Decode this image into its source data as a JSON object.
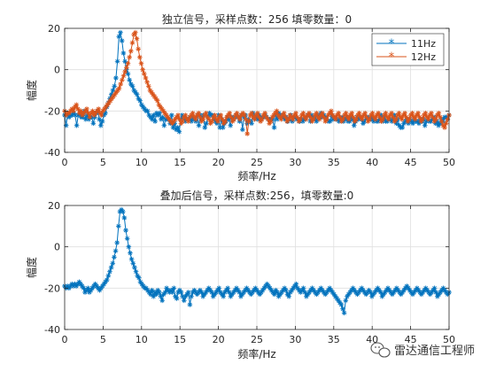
{
  "colors": {
    "series1": "#0072BD",
    "series2": "#D95319",
    "grid": "#DFDFDF",
    "axis": "#262626"
  },
  "watermark": {
    "text": "雷达通信工程师",
    "icon": "wechat-icon"
  },
  "chart_data": [
    {
      "type": "line",
      "title": "独立信号，采样点数：256 填零数量：0",
      "xlabel": "频率/Hz",
      "ylabel": "幅度",
      "xlim": [
        0,
        50
      ],
      "ylim": [
        -40,
        20
      ],
      "xticks": [
        0,
        5,
        10,
        15,
        20,
        25,
        30,
        35,
        40,
        45,
        50
      ],
      "yticks": [
        -40,
        -20,
        0,
        20
      ],
      "grid": true,
      "marker": "asterisk",
      "legend": "top-right",
      "series": [
        {
          "name": "11Hz",
          "color": "#0072BD",
          "values": [
            -22,
            -27,
            -21,
            -23,
            -22,
            -22,
            -21,
            -22,
            -27,
            -22,
            -21,
            -23,
            -23,
            -20,
            -24,
            -22,
            -24,
            -22,
            -23,
            -26,
            -23,
            -21,
            -20,
            -24,
            -27,
            -25,
            -22,
            -21,
            -18,
            -16,
            -14,
            -12,
            -10,
            -8,
            -4,
            4,
            16,
            18,
            14,
            8,
            4,
            0,
            -2,
            -5,
            -7,
            -8,
            -10,
            -11,
            -12,
            -14,
            -15,
            -17,
            -18,
            -19,
            -20,
            -20,
            -22,
            -23,
            -24,
            -22,
            -25,
            -21,
            -22,
            -21,
            -24,
            -23,
            -27,
            -24,
            -24,
            -24,
            -26,
            -22,
            -28,
            -26,
            -29,
            -28,
            -30,
            -24,
            -22,
            -23,
            -25,
            -24,
            -24,
            -23,
            -25,
            -23,
            -24,
            -25,
            -22,
            -27,
            -22,
            -24,
            -22,
            -28,
            -26,
            -23,
            -21,
            -22,
            -22,
            -24,
            -25,
            -26,
            -22,
            -28,
            -24,
            -28,
            -26,
            -25,
            -23,
            -24,
            -27,
            -23,
            -24,
            -23,
            -22,
            -23,
            -25,
            -22,
            -29,
            -23,
            -22,
            -26,
            -24,
            -25,
            -26,
            -21,
            -24,
            -23,
            -24,
            -22,
            -24,
            -23,
            -23,
            -22,
            -23,
            -24,
            -24,
            -24,
            -24,
            -28,
            -22,
            -24,
            -21,
            -22,
            -23,
            -22,
            -24,
            -23,
            -25,
            -24,
            -22,
            -25,
            -23,
            -23,
            -24,
            -24,
            -25,
            -24,
            -25,
            -24,
            -23,
            -22,
            -22,
            -25,
            -22,
            -24,
            -23,
            -25,
            -22,
            -23,
            -21,
            -23,
            -22,
            -23,
            -24,
            -25,
            -25,
            -22,
            -24,
            -23,
            -24,
            -24,
            -25,
            -24,
            -23,
            -25,
            -24,
            -23,
            -25,
            -25,
            -23,
            -24,
            -27,
            -25,
            -23,
            -24,
            -23,
            -24,
            -26,
            -25,
            -23,
            -23,
            -24,
            -24,
            -23,
            -25,
            -24,
            -25,
            -25,
            -24,
            -22,
            -25,
            -23,
            -25,
            -25,
            -24,
            -24,
            -25,
            -24,
            -22,
            -26,
            -24,
            -27,
            -28,
            -28,
            -26,
            -25,
            -24,
            -26,
            -24,
            -25,
            -26,
            -24,
            -25,
            -25,
            -26,
            -24,
            -25,
            -24,
            -27,
            -25,
            -24,
            -25,
            -25,
            -24,
            -23,
            -26,
            -25,
            -27,
            -26,
            -24,
            -25,
            -23,
            -23,
            -24,
            -22
          ]
        },
        {
          "name": "12Hz",
          "color": "#D95319",
          "values": [
            -20,
            -22,
            -21,
            -21,
            -20,
            -19,
            -20,
            -18,
            -17,
            -19,
            -21,
            -20,
            -22,
            -21,
            -20,
            -19,
            -21,
            -23,
            -21,
            -20,
            -22,
            -21,
            -20,
            -19,
            -21,
            -22,
            -20,
            -19,
            -18,
            -17,
            -16,
            -15,
            -14,
            -13,
            -12,
            -11,
            -10,
            -9,
            -7,
            -5,
            -3,
            -1,
            1,
            3,
            6,
            9,
            13,
            17,
            18,
            15,
            10,
            6,
            3,
            0,
            -2,
            -4,
            -6,
            -8,
            -10,
            -11,
            -12,
            -13,
            -14,
            -15,
            -17,
            -18,
            -19,
            -20,
            -21,
            -22,
            -23,
            -24,
            -25,
            -26,
            -25,
            -24,
            -23,
            -22,
            -24,
            -26,
            -25,
            -23,
            -22,
            -24,
            -25,
            -23,
            -22,
            -21,
            -23,
            -24,
            -22,
            -21,
            -23,
            -25,
            -24,
            -22,
            -21,
            -23,
            -24,
            -26,
            -25,
            -23,
            -22,
            -24,
            -25,
            -23,
            -22,
            -24,
            -26,
            -25,
            -23,
            -22,
            -21,
            -23,
            -25,
            -24,
            -22,
            -21,
            -23,
            -24,
            -22,
            -21,
            -22,
            -24,
            -31,
            -25,
            -22,
            -21,
            -23,
            -24,
            -22,
            -21,
            -23,
            -25,
            -24,
            -22,
            -21,
            -23,
            -24,
            -26,
            -25,
            -23,
            -22,
            -21,
            -20,
            -22,
            -23,
            -24,
            -22,
            -21,
            -23,
            -25,
            -24,
            -22,
            -23,
            -24,
            -22,
            -21,
            -23,
            -25,
            -24,
            -22,
            -21,
            -23,
            -24,
            -22,
            -21,
            -23,
            -25,
            -24,
            -22,
            -21,
            -23,
            -24,
            -22,
            -21,
            -23,
            -25,
            -24,
            -22,
            -21,
            -20,
            -22,
            -23,
            -24,
            -22,
            -21,
            -23,
            -25,
            -24,
            -22,
            -21,
            -23,
            -24,
            -22,
            -21,
            -23,
            -25,
            -24,
            -22,
            -21,
            -23,
            -24,
            -22,
            -21,
            -23,
            -25,
            -24,
            -22,
            -21,
            -23,
            -24,
            -22,
            -21,
            -23,
            -25,
            -24,
            -22,
            -21,
            -23,
            -24,
            -22,
            -21,
            -23,
            -25,
            -24,
            -22,
            -21,
            -23,
            -24,
            -22,
            -21,
            -23,
            -25,
            -24,
            -22,
            -21,
            -23,
            -24,
            -22,
            -21,
            -23,
            -25,
            -24,
            -22,
            -21,
            -23,
            -24,
            -22,
            -21,
            -23,
            -25,
            -24,
            -22,
            -21,
            -23,
            -25,
            -27,
            -28,
            -26,
            -24,
            -22
          ]
        }
      ]
    },
    {
      "type": "line",
      "title": "叠加后信号，采样点数:256，填零数量:0",
      "xlabel": "频率/Hz",
      "ylabel": "幅度",
      "xlim": [
        0,
        50
      ],
      "ylim": [
        -40,
        20
      ],
      "xticks": [
        0,
        5,
        10,
        15,
        20,
        25,
        30,
        35,
        40,
        45,
        50
      ],
      "yticks": [
        -40,
        -20,
        0,
        20
      ],
      "grid": true,
      "marker": "asterisk",
      "series": [
        {
          "color": "#0072BD",
          "values": [
            -19,
            -20,
            -19,
            -20,
            -19,
            -18,
            -19,
            -18,
            -19,
            -18,
            -17,
            -18,
            -19,
            -20,
            -22,
            -21,
            -20,
            -22,
            -21,
            -20,
            -19,
            -18,
            -19,
            -20,
            -21,
            -20,
            -19,
            -18,
            -17,
            -16,
            -14,
            -12,
            -10,
            -8,
            -5,
            -2,
            2,
            10,
            17,
            18,
            17,
            14,
            8,
            4,
            0,
            -3,
            -6,
            -8,
            -10,
            -12,
            -14,
            -15,
            -17,
            -18,
            -19,
            -20,
            -20,
            -21,
            -22,
            -23,
            -21,
            -24,
            -22,
            -23,
            -21,
            -22,
            -24,
            -26,
            -23,
            -22,
            -20,
            -21,
            -22,
            -21,
            -22,
            -20,
            -24,
            -25,
            -22,
            -21,
            -22,
            -24,
            -26,
            -24,
            -23,
            -22,
            -28,
            -24,
            -22,
            -21,
            -22,
            -23,
            -22,
            -21,
            -22,
            -24,
            -23,
            -22,
            -21,
            -20,
            -21,
            -22,
            -24,
            -23,
            -22,
            -21,
            -20,
            -22,
            -23,
            -24,
            -22,
            -21,
            -20,
            -22,
            -24,
            -23,
            -22,
            -21,
            -20,
            -21,
            -22,
            -24,
            -23,
            -22,
            -21,
            -20,
            -21,
            -22,
            -23,
            -22,
            -21,
            -20,
            -21,
            -22,
            -23,
            -22,
            -21,
            -20,
            -19,
            -18,
            -19,
            -20,
            -21,
            -22,
            -23,
            -21,
            -22,
            -24,
            -23,
            -22,
            -21,
            -20,
            -21,
            -23,
            -24,
            -22,
            -21,
            -20,
            -19,
            -18,
            -20,
            -21,
            -22,
            -21,
            -20,
            -22,
            -24,
            -23,
            -22,
            -21,
            -20,
            -21,
            -22,
            -23,
            -22,
            -21,
            -20,
            -21,
            -22,
            -23,
            -22,
            -21,
            -20,
            -21,
            -22,
            -23,
            -24,
            -25,
            -26,
            -27,
            -28,
            -30,
            -32,
            -26,
            -24,
            -23,
            -22,
            -21,
            -20,
            -21,
            -22,
            -23,
            -22,
            -21,
            -20,
            -21,
            -22,
            -23,
            -22,
            -21,
            -22,
            -24,
            -23,
            -22,
            -21,
            -20,
            -21,
            -22,
            -24,
            -23,
            -22,
            -21,
            -20,
            -21,
            -22,
            -23,
            -22,
            -21,
            -20,
            -21,
            -22,
            -23,
            -22,
            -21,
            -20,
            -19,
            -20,
            -21,
            -22,
            -23,
            -22,
            -21,
            -20,
            -21,
            -22,
            -23,
            -22,
            -21,
            -20,
            -21,
            -22,
            -23,
            -22,
            -21,
            -20,
            -22,
            -24,
            -23,
            -22,
            -21,
            -20,
            -21,
            -22,
            -23,
            -22
          ]
        }
      ]
    }
  ]
}
